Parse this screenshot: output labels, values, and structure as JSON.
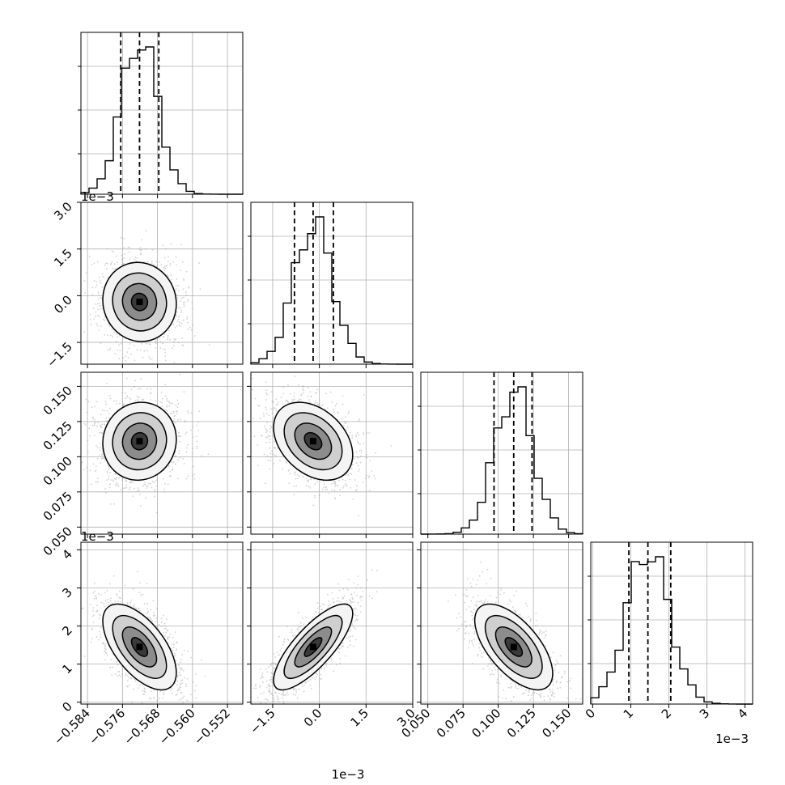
{
  "chart_data": {
    "type": "corner",
    "parameters": [
      {
        "range": [
          -0.5855,
          -0.5485
        ],
        "ticks": [
          -0.584,
          -0.576,
          -0.568,
          -0.56,
          -0.552
        ],
        "tick_labels": [
          "−0.584",
          "−0.576",
          "−0.568",
          "−0.560",
          "−0.552"
        ],
        "scale_label": "",
        "quantiles": [
          -0.5764,
          -0.5721,
          -0.5677
        ],
        "mean": -0.5721,
        "sd": 0.0041
      },
      {
        "range": [
          -2.2,
          3.0
        ],
        "ticks": [
          -1.5,
          0.0,
          1.5,
          3.0
        ],
        "tick_labels": [
          "−1.5",
          "0.0",
          "1.5",
          "3.0"
        ],
        "scale_label": "1e−3",
        "quantiles": [
          -0.8,
          -0.2,
          0.45
        ],
        "mean": -0.2,
        "sd": 0.62
      },
      {
        "range": [
          0.045,
          0.16
        ],
        "ticks": [
          0.05,
          0.075,
          0.1,
          0.125,
          0.15
        ],
        "tick_labels": [
          "0.050",
          "0.075",
          "0.100",
          "0.125",
          "0.150"
        ],
        "scale_label": "",
        "quantiles": [
          0.097,
          0.111,
          0.124
        ],
        "mean": 0.111,
        "sd": 0.0135
      },
      {
        "range": [
          -0.05,
          4.2
        ],
        "ticks": [
          0,
          1,
          2,
          3,
          4
        ],
        "tick_labels": [
          "0",
          "1",
          "2",
          "3",
          "4"
        ],
        "scale_label": "1e−3",
        "quantiles": [
          0.95,
          1.45,
          2.05
        ],
        "mean": 1.45,
        "sd": 0.55
      }
    ],
    "pair_correlations": {
      "1-0": -0.05,
      "2-0": 0.05,
      "2-1": -0.35,
      "3-0": -0.6,
      "3-1": 0.78,
      "3-2": -0.62
    },
    "grid": true,
    "quantile_lines": "dashed"
  }
}
